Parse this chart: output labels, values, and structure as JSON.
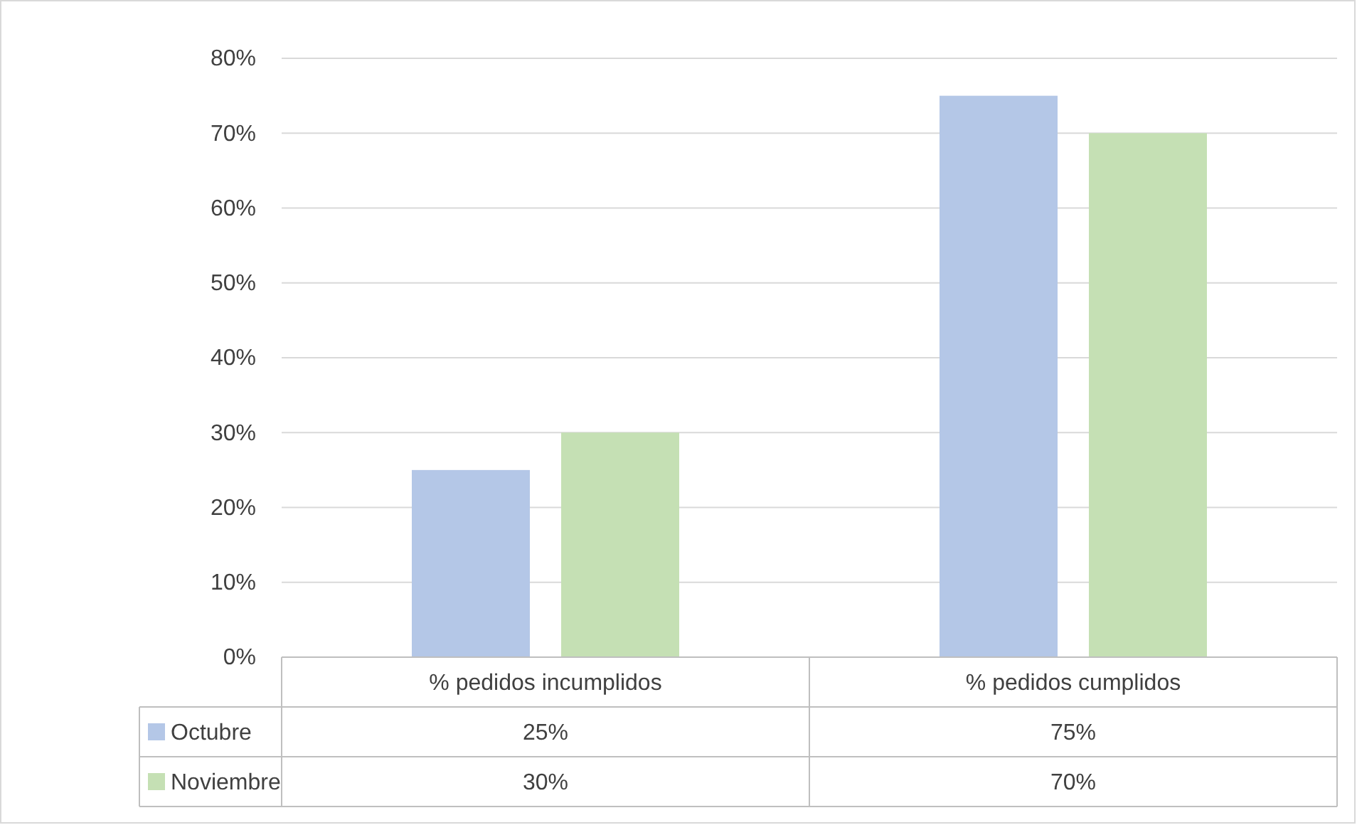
{
  "chart_data": {
    "type": "bar",
    "categories": [
      "% pedidos incumplidos",
      "% pedidos cumplidos"
    ],
    "series": [
      {
        "name": "Octubre",
        "color": "#b4c7e7",
        "values": [
          25,
          75
        ],
        "value_labels": [
          "25%",
          "75%"
        ]
      },
      {
        "name": "Noviembre",
        "color": "#c5e0b4",
        "values": [
          30,
          70
        ],
        "value_labels": [
          "30%",
          "70%"
        ]
      }
    ],
    "ylim": [
      0,
      80
    ],
    "yticks": [
      {
        "value": 0,
        "label": "0%"
      },
      {
        "value": 10,
        "label": "10%"
      },
      {
        "value": 20,
        "label": "20%"
      },
      {
        "value": 30,
        "label": "30%"
      },
      {
        "value": 40,
        "label": "40%"
      },
      {
        "value": 50,
        "label": "50%"
      },
      {
        "value": 60,
        "label": "60%"
      },
      {
        "value": 70,
        "label": "70%"
      },
      {
        "value": 80,
        "label": "80%"
      }
    ],
    "grid": "y",
    "legend": "bottom"
  }
}
